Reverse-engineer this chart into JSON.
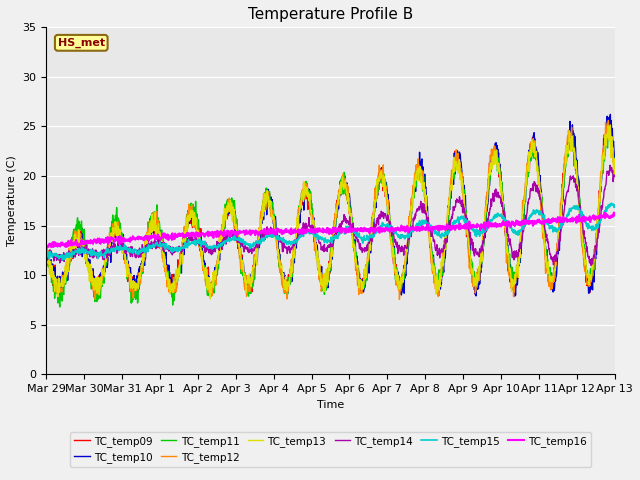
{
  "title": "Temperature Profile B",
  "xlabel": "Time",
  "ylabel": "Temperature (C)",
  "ylim": [
    0,
    35
  ],
  "annotation": "HS_met",
  "series_names": [
    "TC_temp09",
    "TC_temp10",
    "TC_temp11",
    "TC_temp12",
    "TC_temp13",
    "TC_temp14",
    "TC_temp15",
    "TC_temp16"
  ],
  "series_colors": [
    "#ff0000",
    "#0000cc",
    "#00cc00",
    "#ff8800",
    "#dddd00",
    "#aa00aa",
    "#00cccc",
    "#ff00ff"
  ],
  "series_linewidths": [
    1.0,
    1.0,
    1.0,
    1.0,
    1.0,
    1.0,
    1.2,
    1.5
  ],
  "fig_background": "#f0f0f0",
  "plot_background": "#e8e8e8",
  "yticks": [
    0,
    5,
    10,
    15,
    20,
    25,
    30,
    35
  ],
  "xtick_labels": [
    "Mar 29",
    "Mar 30",
    "Mar 31",
    "Apr 1",
    "Apr 2",
    "Apr 3",
    "Apr 4",
    "Apr 5",
    "Apr 6",
    "Apr 7",
    "Apr 8",
    "Apr 9",
    "Apr 10",
    "Apr 11",
    "Apr 12",
    "Apr 13"
  ],
  "n_days": 15,
  "n_points": 1440,
  "annotation_facecolor": "#ffff99",
  "annotation_edgecolor": "#8b6914",
  "annotation_textcolor": "#8b0000"
}
